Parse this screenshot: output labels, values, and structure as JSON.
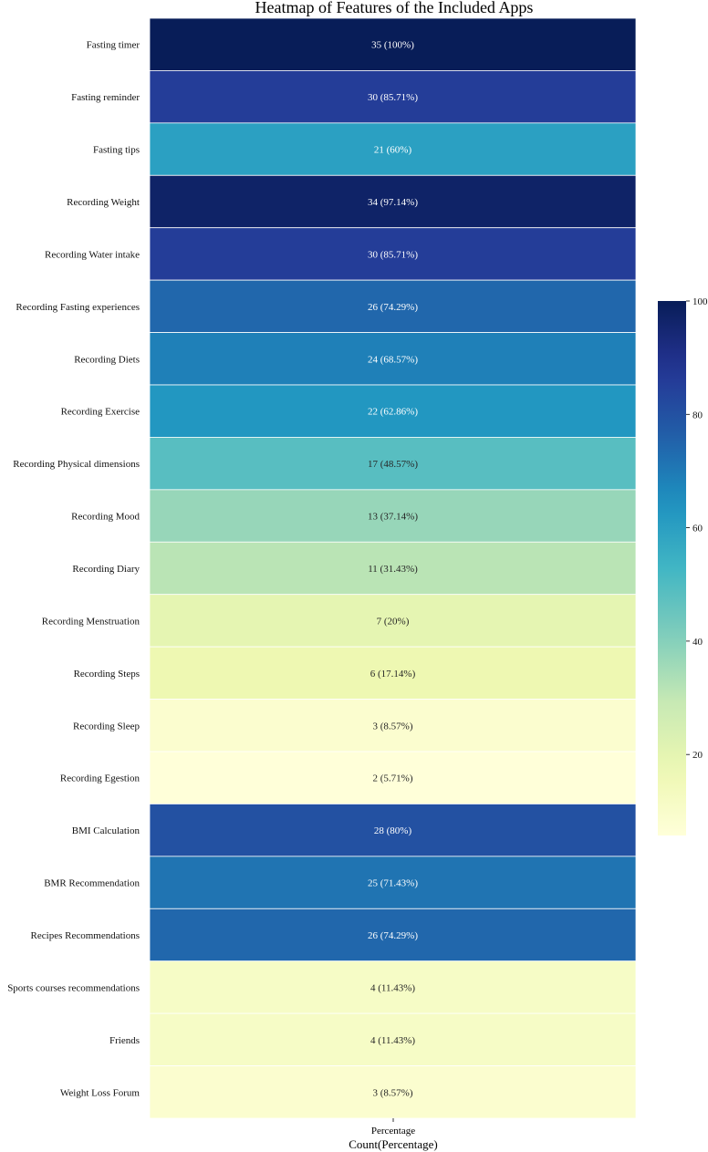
{
  "chart_data": {
    "type": "heatmap",
    "title": "Heatmap of Features of the Included Apps",
    "xlabel": "Count(Percentage)",
    "x_tick_labels": [
      "Percentage"
    ],
    "ylabel": "",
    "rows": [
      {
        "label": "Fasting timer",
        "count": 35,
        "percentage": 100,
        "annotation": "35 (100%)"
      },
      {
        "label": "Fasting reminder",
        "count": 30,
        "percentage": 85.71,
        "annotation": "30 (85.71%)"
      },
      {
        "label": "Fasting tips",
        "count": 21,
        "percentage": 60,
        "annotation": "21 (60%)"
      },
      {
        "label": "Recording Weight",
        "count": 34,
        "percentage": 97.14,
        "annotation": "34 (97.14%)"
      },
      {
        "label": "Recording Water intake",
        "count": 30,
        "percentage": 85.71,
        "annotation": "30 (85.71%)"
      },
      {
        "label": "Recording Fasting experiences",
        "count": 26,
        "percentage": 74.29,
        "annotation": "26 (74.29%)"
      },
      {
        "label": "Recording Diets",
        "count": 24,
        "percentage": 68.57,
        "annotation": "24 (68.57%)"
      },
      {
        "label": "Recording Exercise",
        "count": 22,
        "percentage": 62.86,
        "annotation": "22 (62.86%)"
      },
      {
        "label": "Recording Physical dimensions",
        "count": 17,
        "percentage": 48.57,
        "annotation": "17 (48.57%)"
      },
      {
        "label": "Recording Mood",
        "count": 13,
        "percentage": 37.14,
        "annotation": "13 (37.14%)"
      },
      {
        "label": "Recording Diary",
        "count": 11,
        "percentage": 31.43,
        "annotation": "11 (31.43%)"
      },
      {
        "label": "Recording Menstruation",
        "count": 7,
        "percentage": 20,
        "annotation": "7 (20%)"
      },
      {
        "label": "Recording Steps",
        "count": 6,
        "percentage": 17.14,
        "annotation": "6 (17.14%)"
      },
      {
        "label": "Recording Sleep",
        "count": 3,
        "percentage": 8.57,
        "annotation": "3 (8.57%)"
      },
      {
        "label": "Recording Egestion",
        "count": 2,
        "percentage": 5.71,
        "annotation": "2 (5.71%)"
      },
      {
        "label": "BMI Calculation",
        "count": 28,
        "percentage": 80,
        "annotation": "28 (80%)"
      },
      {
        "label": "BMR Recommendation",
        "count": 25,
        "percentage": 71.43,
        "annotation": "25 (71.43%)"
      },
      {
        "label": "Recipes Recommendations",
        "count": 26,
        "percentage": 74.29,
        "annotation": "26 (74.29%)"
      },
      {
        "label": "Sports courses recommendations",
        "count": 4,
        "percentage": 11.43,
        "annotation": "4 (11.43%)"
      },
      {
        "label": "Friends",
        "count": 4,
        "percentage": 11.43,
        "annotation": "4 (11.43%)"
      },
      {
        "label": "Weight Loss Forum",
        "count": 3,
        "percentage": 8.57,
        "annotation": "3 (8.57%)"
      }
    ],
    "colormap": "YlGnBu",
    "colorbar": {
      "range": [
        5.71,
        100
      ],
      "ticks": [
        20,
        40,
        60,
        80,
        100
      ],
      "tick_labels": [
        "20",
        "40",
        "60",
        "80",
        "100"
      ]
    }
  }
}
